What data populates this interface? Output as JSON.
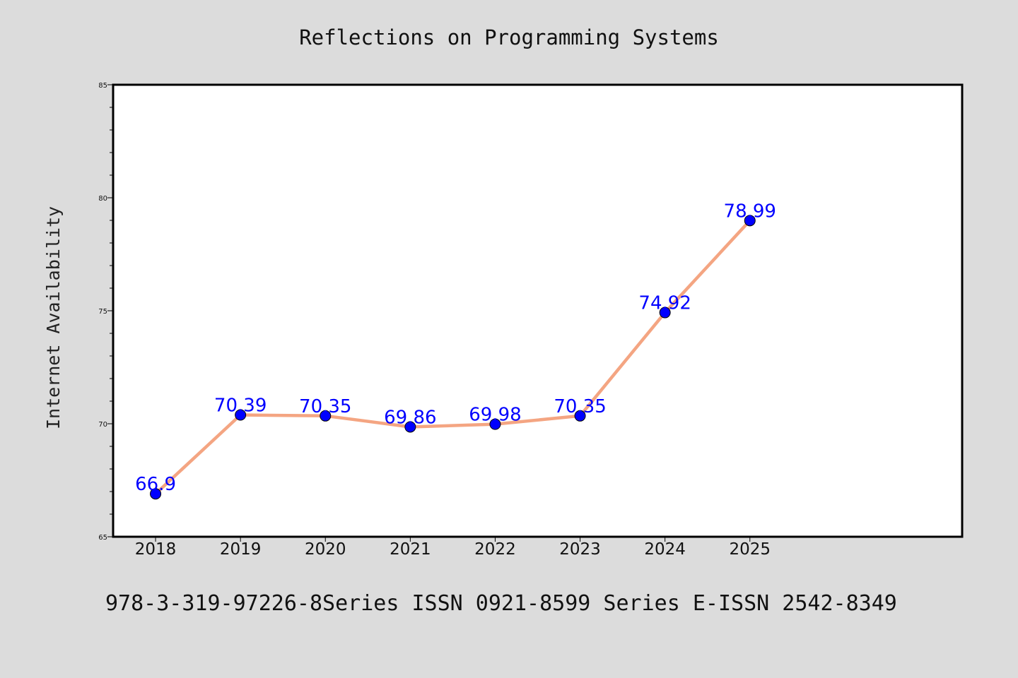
{
  "chart_data": {
    "type": "line",
    "title": "Reflections on Programming Systems",
    "xlabel": "",
    "ylabel": "Internet Availability",
    "categories": [
      "2018",
      "2019",
      "2020",
      "2021",
      "2022",
      "2023",
      "2024",
      "2025"
    ],
    "values": [
      66.9,
      70.39,
      70.35,
      69.86,
      69.98,
      70.35,
      74.92,
      78.99
    ],
    "data_labels": [
      "66.9",
      "70.39",
      "70.35",
      "69.86",
      "69.98",
      "70.35",
      "74.92",
      "78.99"
    ],
    "ylim": [
      65,
      85
    ],
    "yticks": [
      65,
      70,
      75,
      80,
      85
    ],
    "ytick_labels": [
      "65",
      "70",
      "75",
      "80",
      "85"
    ],
    "grid": false,
    "legend": "none",
    "line_color": "#f4a582",
    "marker_color": "#0000ff",
    "label_color": "#0000ff",
    "background_color": "#dcdcdc",
    "plot_background_color": "#ffffff"
  },
  "footer": {
    "text": "978-3-319-97226-8Series ISSN 0921-8599 Series E-ISSN 2542-8349"
  }
}
